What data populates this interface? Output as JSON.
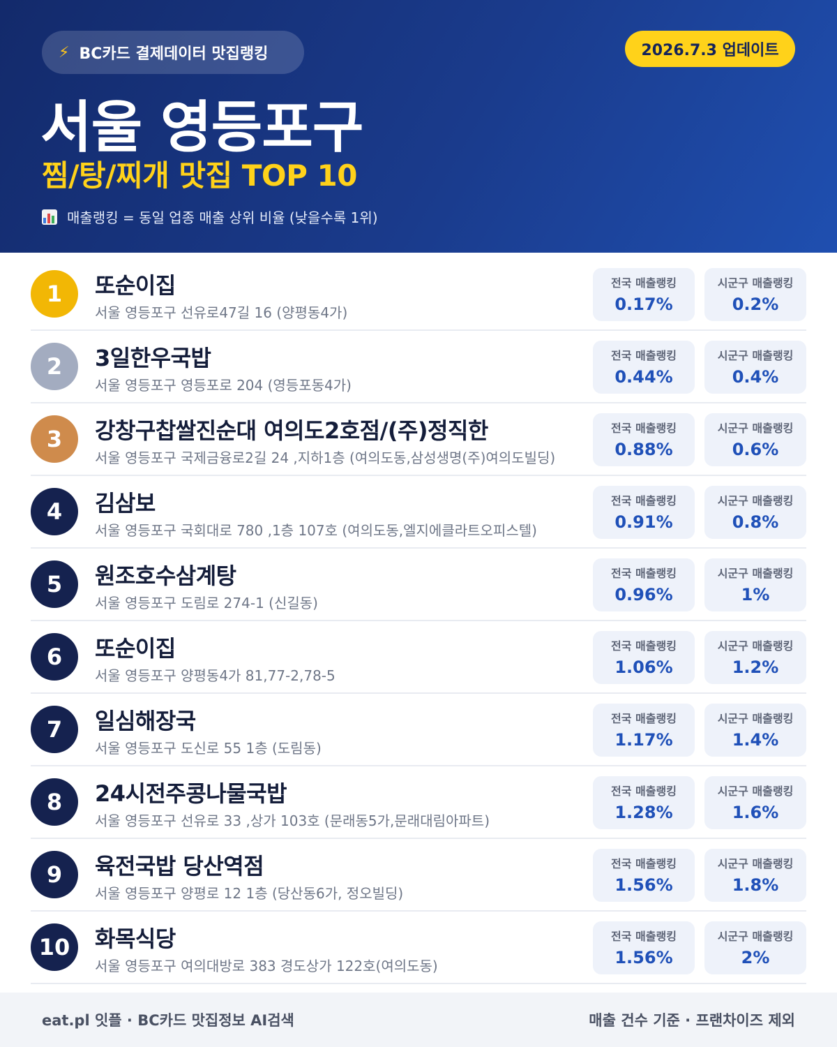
{
  "header": {
    "pill_label": "BC카드 결제데이터 맛집랭킹",
    "pill_icon": "lightning-icon",
    "update_badge": "2026.7.3 업데이트",
    "title": "서울 영등포구",
    "subtitle": "찜/탕/찌개 맛집 TOP 10",
    "note_icon": "bar-chart-icon",
    "note": "매출랭킹 = 동일 업종 매출 상위 비율 (낮을수록 1위)"
  },
  "colors": {
    "header_bg": "#1a3b8c",
    "accent_yellow": "#ffd21a",
    "rank_gold": "#f2b705",
    "rank_silver": "#a3acc0",
    "rank_bronze": "#cf8b4c",
    "rank_default": "#15224f",
    "stat_value": "#1f50b8"
  },
  "stat_labels": {
    "national": "전국 매출랭킹",
    "local": "시군구 매출랭킹"
  },
  "restaurants": [
    {
      "rank": "1",
      "name": "또순이집",
      "address": "서울 영등포구 선유로47길 16 (양평동4가)",
      "national": "0.17%",
      "local": "0.2%"
    },
    {
      "rank": "2",
      "name": "3일한우국밥",
      "address": "서울 영등포구 영등포로 204 (영등포동4가)",
      "national": "0.44%",
      "local": "0.4%"
    },
    {
      "rank": "3",
      "name": "강창구찹쌀진순대 여의도2호점/(주)정직한",
      "address": "서울 영등포구 국제금융로2길 24 ,지하1층 (여의도동,삼성생명(주)여의도빌딩)",
      "national": "0.88%",
      "local": "0.6%"
    },
    {
      "rank": "4",
      "name": "김삼보",
      "address": "서울 영등포구 국회대로 780 ,1층 107호 (여의도동,엘지에클라트오피스텔)",
      "national": "0.91%",
      "local": "0.8%"
    },
    {
      "rank": "5",
      "name": "원조호수삼계탕",
      "address": "서울 영등포구 도림로 274-1 (신길동)",
      "national": "0.96%",
      "local": "1%"
    },
    {
      "rank": "6",
      "name": "또순이집",
      "address": "서울 영등포구 양평동4가 81,77-2,78-5",
      "national": "1.06%",
      "local": "1.2%"
    },
    {
      "rank": "7",
      "name": "일심해장국",
      "address": "서울 영등포구 도신로 55 1층 (도림동)",
      "national": "1.17%",
      "local": "1.4%"
    },
    {
      "rank": "8",
      "name": "24시전주콩나물국밥",
      "address": "서울 영등포구 선유로 33 ,상가 103호 (문래동5가,문래대림아파트)",
      "national": "1.28%",
      "local": "1.6%"
    },
    {
      "rank": "9",
      "name": "육전국밥 당산역점",
      "address": "서울 영등포구 양평로 12 1층 (당산동6가, 정오빌딩)",
      "national": "1.56%",
      "local": "1.8%"
    },
    {
      "rank": "10",
      "name": "화목식당",
      "address": "서울 영등포구 여의대방로 383 경도상가 122호(여의도동)",
      "national": "1.56%",
      "local": "2%"
    }
  ],
  "footer": {
    "left": "eat.pl 잇플 · BC카드 맛집정보 AI검색",
    "right": "매출 건수 기준 · 프랜차이즈 제외"
  }
}
